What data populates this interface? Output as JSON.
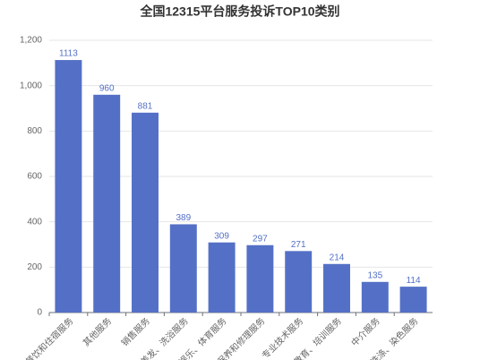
{
  "chart_data": {
    "type": "bar",
    "title": "全国12315平台服务投诉TOP10类别",
    "categories": [
      "餐饮和住宿服务",
      "其他服务",
      "销售服务",
      "美发、洗浴服务",
      "娱乐、体育服务",
      "保养和修理服务",
      "专业技术服务",
      "教育、培训服务",
      "中介服务",
      "洗涤、染色服务"
    ],
    "values": [
      1113,
      960,
      881,
      389,
      309,
      297,
      271,
      214,
      135,
      114
    ],
    "color": "#5470c6",
    "ylim": [
      0,
      1200
    ],
    "yticks": [
      0,
      200,
      400,
      600,
      800,
      {
        "value": 1000,
        "label": "1,000"
      },
      {
        "value": 1200,
        "label": "1,200"
      }
    ],
    "grid": true
  }
}
